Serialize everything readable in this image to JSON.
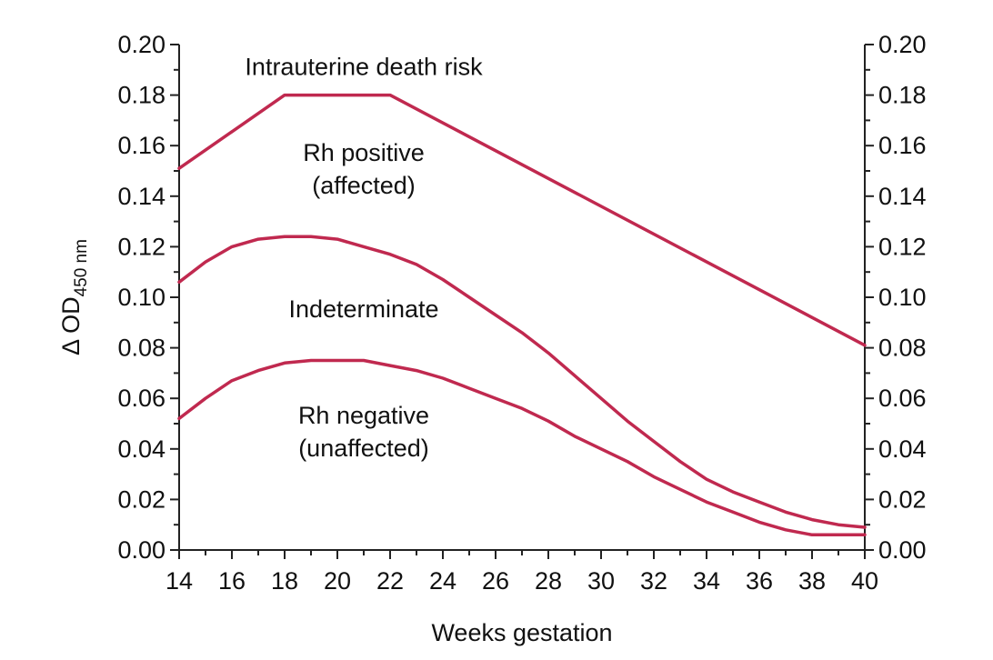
{
  "chart_data": {
    "type": "line",
    "xlabel": "Weeks gestation",
    "ylabel": "Δ OD",
    "ylabel_sub": "450 nm",
    "xlim": [
      14,
      40
    ],
    "ylim": [
      0,
      0.2
    ],
    "x_ticks": [
      "14",
      "16",
      "18",
      "20",
      "22",
      "24",
      "26",
      "28",
      "30",
      "32",
      "34",
      "36",
      "38",
      "40"
    ],
    "y_ticks": [
      "0.00",
      "0.02",
      "0.04",
      "0.06",
      "0.08",
      "0.10",
      "0.12",
      "0.14",
      "0.16",
      "0.18",
      "0.20"
    ],
    "right_axis": true,
    "grid": false,
    "line_color": "#c0294f",
    "series": [
      {
        "x": [
          14,
          18,
          22,
          40
        ],
        "y": [
          0.151,
          0.18,
          0.18,
          0.081
        ]
      },
      {
        "x": [
          14,
          15,
          16,
          17,
          18,
          19,
          20,
          21,
          22,
          23,
          24,
          25,
          26,
          27,
          28,
          29,
          30,
          31,
          32,
          33,
          34,
          35,
          36,
          37,
          38,
          39,
          40
        ],
        "y": [
          0.106,
          0.114,
          0.12,
          0.123,
          0.124,
          0.124,
          0.123,
          0.12,
          0.117,
          0.113,
          0.107,
          0.1,
          0.093,
          0.086,
          0.078,
          0.069,
          0.06,
          0.051,
          0.043,
          0.035,
          0.028,
          0.023,
          0.019,
          0.015,
          0.012,
          0.01,
          0.009
        ]
      },
      {
        "x": [
          14,
          15,
          16,
          17,
          18,
          19,
          20,
          21,
          22,
          23,
          24,
          25,
          26,
          27,
          28,
          29,
          30,
          31,
          32,
          33,
          34,
          35,
          36,
          37,
          38,
          39,
          40
        ],
        "y": [
          0.052,
          0.06,
          0.067,
          0.071,
          0.074,
          0.075,
          0.075,
          0.075,
          0.073,
          0.071,
          0.068,
          0.064,
          0.06,
          0.056,
          0.051,
          0.045,
          0.04,
          0.035,
          0.029,
          0.024,
          0.019,
          0.015,
          0.011,
          0.008,
          0.006,
          0.006,
          0.006
        ]
      }
    ],
    "annotations": [
      {
        "text": "Intrauterine death risk",
        "x": 21,
        "y": 0.188
      },
      {
        "text": "Rh positive",
        "x": 21,
        "y": 0.154
      },
      {
        "text": "(affected)",
        "x": 21,
        "y": 0.141
      },
      {
        "text": "Indeterminate",
        "x": 21,
        "y": 0.092
      },
      {
        "text": "Rh negative",
        "x": 21,
        "y": 0.05
      },
      {
        "text": "(unaffected)",
        "x": 21,
        "y": 0.037
      }
    ]
  }
}
